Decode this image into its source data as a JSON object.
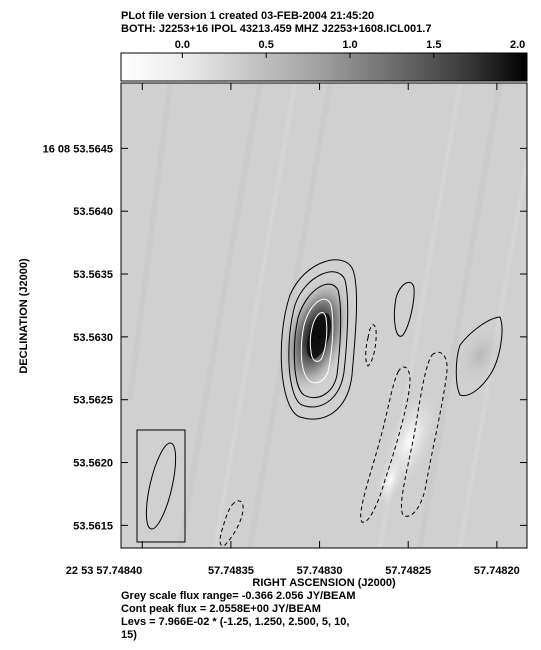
{
  "header": {
    "line1": "PLot file version 1  created 03-FEB-2004 21:45:20",
    "line2": "BOTH: J2253+16  IPOL  43213.459 MHZ  J2253+1608.ICL001.7"
  },
  "footer": {
    "line1": "Grey scale flux range= -0.366 2.056 JY/BEAM",
    "line2": "Cont peak flux =  2.0558E+00 JY/BEAM",
    "line3": "Levs = 7.966E-02 * (-1.25, 1.250, 2.500, 5, 10,",
    "line4": "15)"
  },
  "chart_data": {
    "type": "heatmap",
    "title": "",
    "xlabel": "RIGHT ASCENSION (J2000)",
    "ylabel": "DECLINATION (J2000)",
    "x_ticks": [
      {
        "label": "22 53 57.74840",
        "value": 57.7484
      },
      {
        "label": "57.74835",
        "value": 57.74835
      },
      {
        "label": "57.74830",
        "value": 57.7483
      },
      {
        "label": "57.74825",
        "value": 57.74825
      },
      {
        "label": "57.74820",
        "value": 57.7482
      }
    ],
    "y_ticks": [
      {
        "label": "16 08 53.5645",
        "value": 53.5645
      },
      {
        "label": "53.5640",
        "value": 53.564
      },
      {
        "label": "53.5635",
        "value": 53.5635
      },
      {
        "label": "53.5630",
        "value": 53.563
      },
      {
        "label": "53.5625",
        "value": 53.5625
      },
      {
        "label": "53.5620",
        "value": 53.562
      },
      {
        "label": "53.5615",
        "value": 53.5615
      }
    ],
    "xlim": [
      57.748412,
      57.748183
    ],
    "ylim": [
      53.56132,
      53.56502
    ],
    "colorbar": {
      "ticks": [
        "0.0",
        "0.5",
        "1.0",
        "1.5",
        "2.0"
      ],
      "tick_values": [
        0.0,
        0.5,
        1.0,
        1.5,
        2.0
      ],
      "range": [
        -0.366,
        2.056
      ],
      "unit": "JY/BEAM"
    },
    "contour_base": 0.07966,
    "contour_levels": [
      -1.25,
      1.25,
      2.5,
      5,
      10,
      15
    ],
    "peak": {
      "ra": 57.7483,
      "dec": 53.563,
      "flux": 2.0558
    }
  }
}
